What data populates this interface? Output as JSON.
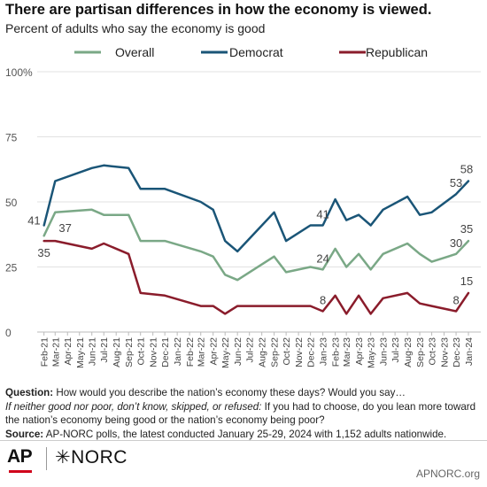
{
  "title": "There are partisan differences in how the economy is viewed.",
  "subtitle": "Percent of adults who say the economy is good",
  "notes": {
    "question_label": "Question:",
    "question_text": "How would you describe the nation’s economy these days? Would you say…",
    "followup_italic": "If neither good nor poor, don’t know, skipped, or refused:",
    "followup_text": "If you had to choose, do you lean more toward the nation’s economy being good or the nation’s economy being poor?",
    "source_label": "Source:",
    "source_text": "AP-NORC polls, the latest conducted January 25-29, 2024 with 1,152 adults nationwide."
  },
  "logos": {
    "ap": "AP",
    "norc": "NORC"
  },
  "site": "APNORC.org",
  "chart_data": {
    "type": "line",
    "ylim": [
      0,
      100
    ],
    "yticks": [
      0,
      25,
      50,
      75,
      100
    ],
    "ytick_labels": [
      "0",
      "25",
      "50",
      "75",
      "100%"
    ],
    "x_axis": {
      "start": "2021-01-15",
      "end": "2024-02-01"
    },
    "x_tick_labels": [
      "Feb-21",
      "Mar-21",
      "Apr-21",
      "May-21",
      "Jun-21",
      "Jul-21",
      "Aug-21",
      "Sep-21",
      "Oct-21",
      "Nov-21",
      "Dec-21",
      "Jan-22",
      "Feb-22",
      "Mar-22",
      "Apr-22",
      "May-22",
      "Jun-22",
      "Jul-22",
      "Aug-22",
      "Sep-22",
      "Oct-22",
      "Nov-22",
      "Dec-22",
      "Jan-23",
      "Feb-23",
      "Mar-23",
      "Apr-23",
      "May-23",
      "Jun-23",
      "Jul-23",
      "Aug-23",
      "Sep-23",
      "Oct-23",
      "Nov-23",
      "Dec-23",
      "Jan-24"
    ],
    "x_tick_dates": [
      "2021-02-01",
      "2021-03-01",
      "2021-04-01",
      "2021-05-01",
      "2021-06-01",
      "2021-07-01",
      "2021-08-01",
      "2021-09-01",
      "2021-10-01",
      "2021-11-01",
      "2021-12-01",
      "2022-01-01",
      "2022-02-01",
      "2022-03-01",
      "2022-04-01",
      "2022-05-01",
      "2022-06-01",
      "2022-07-01",
      "2022-08-01",
      "2022-09-01",
      "2022-10-01",
      "2022-11-01",
      "2022-12-01",
      "2023-01-01",
      "2023-02-01",
      "2023-03-01",
      "2023-04-01",
      "2023-05-01",
      "2023-06-01",
      "2023-07-01",
      "2023-08-01",
      "2023-09-01",
      "2023-10-01",
      "2023-11-01",
      "2023-12-01",
      "2024-01-01"
    ],
    "legend_position": "top",
    "grid": "horizontal",
    "series": [
      {
        "name": "Overall",
        "color": "#7aa886",
        "points": [
          [
            "2021-02-01",
            37
          ],
          [
            "2021-03-01",
            46
          ],
          [
            "2021-06-01",
            47
          ],
          [
            "2021-07-01",
            45
          ],
          [
            "2021-09-01",
            45
          ],
          [
            "2021-10-01",
            35
          ],
          [
            "2021-12-01",
            35
          ],
          [
            "2022-03-01",
            31
          ],
          [
            "2022-04-01",
            29
          ],
          [
            "2022-05-01",
            22
          ],
          [
            "2022-06-01",
            20
          ],
          [
            "2022-09-01",
            29
          ],
          [
            "2022-10-01",
            23
          ],
          [
            "2022-12-01",
            25
          ],
          [
            "2023-01-01",
            24
          ],
          [
            "2023-02-01",
            32
          ],
          [
            "2023-03-01",
            25
          ],
          [
            "2023-04-01",
            30
          ],
          [
            "2023-05-01",
            24
          ],
          [
            "2023-06-01",
            30
          ],
          [
            "2023-08-01",
            34
          ],
          [
            "2023-09-01",
            30
          ],
          [
            "2023-10-01",
            27
          ],
          [
            "2023-12-01",
            30
          ],
          [
            "2024-01-01",
            35
          ]
        ],
        "labels": [
          {
            "date": "2021-02-01",
            "value": 37,
            "text": "37",
            "pos": "right-above"
          },
          {
            "date": "2023-01-01",
            "value": 24,
            "text": "24",
            "pos": "above"
          },
          {
            "date": "2023-12-01",
            "value": 30,
            "text": "30",
            "pos": "above"
          },
          {
            "date": "2024-01-01",
            "value": 35,
            "text": "35",
            "pos": "above"
          }
        ]
      },
      {
        "name": "Democrat",
        "color": "#1a5577",
        "points": [
          [
            "2021-02-01",
            41
          ],
          [
            "2021-03-01",
            58
          ],
          [
            "2021-06-01",
            63
          ],
          [
            "2021-07-01",
            64
          ],
          [
            "2021-09-01",
            63
          ],
          [
            "2021-10-01",
            55
          ],
          [
            "2021-12-01",
            55
          ],
          [
            "2022-03-01",
            50
          ],
          [
            "2022-04-01",
            47
          ],
          [
            "2022-05-01",
            35
          ],
          [
            "2022-06-01",
            31
          ],
          [
            "2022-09-01",
            46
          ],
          [
            "2022-10-01",
            35
          ],
          [
            "2022-12-01",
            41
          ],
          [
            "2023-01-01",
            41
          ],
          [
            "2023-02-01",
            51
          ],
          [
            "2023-03-01",
            43
          ],
          [
            "2023-04-01",
            45
          ],
          [
            "2023-05-01",
            41
          ],
          [
            "2023-06-01",
            47
          ],
          [
            "2023-08-01",
            52
          ],
          [
            "2023-09-01",
            45
          ],
          [
            "2023-10-01",
            46
          ],
          [
            "2023-12-01",
            53
          ],
          [
            "2024-01-01",
            58
          ]
        ],
        "labels": [
          {
            "date": "2021-02-01",
            "value": 41,
            "text": "41",
            "pos": "left"
          },
          {
            "date": "2023-01-01",
            "value": 41,
            "text": "41",
            "pos": "above"
          },
          {
            "date": "2023-12-01",
            "value": 53,
            "text": "53",
            "pos": "above"
          },
          {
            "date": "2024-01-01",
            "value": 58,
            "text": "58",
            "pos": "above"
          }
        ]
      },
      {
        "name": "Republican",
        "color": "#8a1c2b",
        "points": [
          [
            "2021-02-01",
            35
          ],
          [
            "2021-03-01",
            35
          ],
          [
            "2021-06-01",
            32
          ],
          [
            "2021-07-01",
            34
          ],
          [
            "2021-09-01",
            30
          ],
          [
            "2021-10-01",
            15
          ],
          [
            "2021-12-01",
            14
          ],
          [
            "2022-03-01",
            10
          ],
          [
            "2022-04-01",
            10
          ],
          [
            "2022-05-01",
            7
          ],
          [
            "2022-06-01",
            10
          ],
          [
            "2022-09-01",
            10
          ],
          [
            "2022-10-01",
            10
          ],
          [
            "2022-12-01",
            10
          ],
          [
            "2023-01-01",
            8
          ],
          [
            "2023-02-01",
            14
          ],
          [
            "2023-03-01",
            7
          ],
          [
            "2023-04-01",
            14
          ],
          [
            "2023-05-01",
            7
          ],
          [
            "2023-06-01",
            13
          ],
          [
            "2023-08-01",
            15
          ],
          [
            "2023-09-01",
            11
          ],
          [
            "2023-10-01",
            10
          ],
          [
            "2023-12-01",
            8
          ],
          [
            "2024-01-01",
            15
          ]
        ],
        "labels": [
          {
            "date": "2021-02-01",
            "value": 35,
            "text": "35",
            "pos": "below"
          },
          {
            "date": "2023-01-01",
            "value": 8,
            "text": "8",
            "pos": "above"
          },
          {
            "date": "2023-12-01",
            "value": 8,
            "text": "8",
            "pos": "above"
          },
          {
            "date": "2024-01-01",
            "value": 15,
            "text": "15",
            "pos": "above"
          }
        ]
      }
    ]
  }
}
